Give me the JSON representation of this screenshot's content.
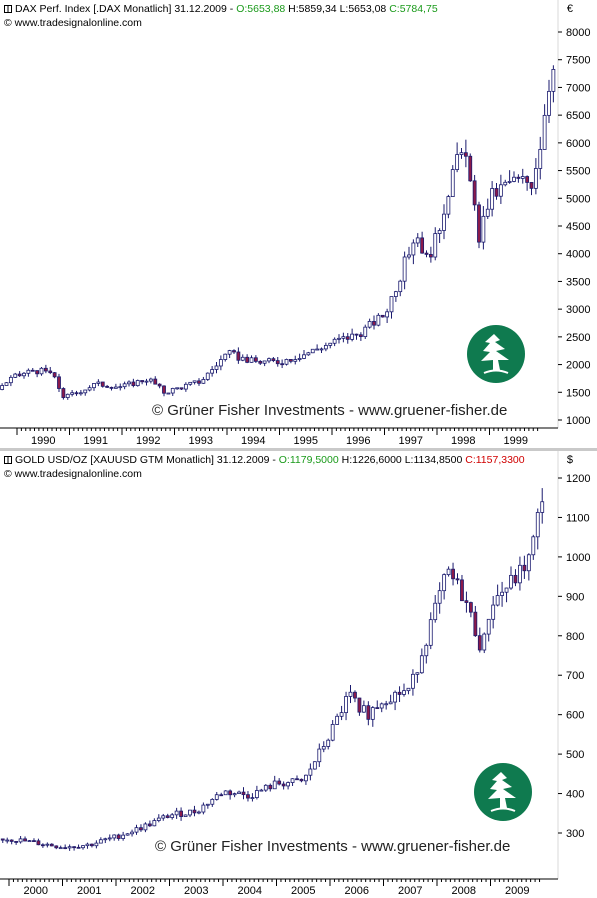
{
  "chart_data": [
    {
      "type": "candlestick",
      "title": "DAX Perf. Index [.DAX  Monatlich] 31.12.2009",
      "header": {
        "name": "DAX Perf. Index [.DAX  Monatlich] 31.12.2009 - ",
        "open": "O:5653,88",
        "high": "H:5859,34",
        "low": "L:5653,08",
        "close": "C:5784,75"
      },
      "source": "© www.tradesignalonline.com",
      "currency": "€",
      "copyright": "© Grüner Fisher Investments - www.gruener-fisher.de",
      "x_ticks": [
        "1990",
        "1991",
        "1992",
        "1993",
        "1994",
        "1995",
        "1996",
        "1997",
        "1998",
        "1999"
      ],
      "y_ticks": [
        "8000",
        "7500",
        "7000",
        "6500",
        "6000",
        "5500",
        "5000",
        "4500",
        "4000",
        "3500",
        "3000",
        "2500",
        "2000",
        "1500",
        "1000"
      ],
      "ylim": [
        1000,
        8000
      ],
      "x_range": [
        1989.55,
        2000.85
      ],
      "key_points": [
        {
          "t": 1989.6,
          "v": 1550
        },
        {
          "t": 1989.9,
          "v": 1750
        },
        {
          "t": 1990.3,
          "v": 1900
        },
        {
          "t": 1990.65,
          "v": 1850
        },
        {
          "t": 1990.9,
          "v": 1400
        },
        {
          "t": 1991.5,
          "v": 1650
        },
        {
          "t": 1992.0,
          "v": 1600
        },
        {
          "t": 1992.5,
          "v": 1750
        },
        {
          "t": 1992.8,
          "v": 1500
        },
        {
          "t": 1993.5,
          "v": 1700
        },
        {
          "t": 1994.0,
          "v": 2200
        },
        {
          "t": 1994.5,
          "v": 2050
        },
        {
          "t": 1995.0,
          "v": 2050
        },
        {
          "t": 1995.5,
          "v": 2200
        },
        {
          "t": 1996.0,
          "v": 2400
        },
        {
          "t": 1996.5,
          "v": 2550
        },
        {
          "t": 1997.0,
          "v": 2900
        },
        {
          "t": 1997.3,
          "v": 3600
        },
        {
          "t": 1997.6,
          "v": 4400
        },
        {
          "t": 1997.8,
          "v": 3900
        },
        {
          "t": 1998.0,
          "v": 4300
        },
        {
          "t": 1998.3,
          "v": 5500
        },
        {
          "t": 1998.55,
          "v": 5900
        },
        {
          "t": 1998.65,
          "v": 5100
        },
        {
          "t": 1998.8,
          "v": 4300
        },
        {
          "t": 1999.0,
          "v": 5000
        },
        {
          "t": 1999.4,
          "v": 5300
        },
        {
          "t": 1999.8,
          "v": 5300
        },
        {
          "t": 1999.95,
          "v": 5900
        },
        {
          "t": 2000.1,
          "v": 6900
        },
        {
          "t": 2000.25,
          "v": 7700
        },
        {
          "t": 2000.4,
          "v": 7450
        },
        {
          "t": 2000.6,
          "v": 7000
        },
        {
          "t": 2000.85,
          "v": 6900
        }
      ]
    },
    {
      "type": "candlestick",
      "title": "GOLD USD/OZ [XAUUSD GTM  Monatlich] 31.12.2009",
      "header": {
        "name": "GOLD USD/OZ [XAUUSD GTM  Monatlich] 31.12.2009 - ",
        "open": "O:1179,5000",
        "high": "H:1226,6000",
        "low": "L:1134,8500",
        "close": "C:1157,3300"
      },
      "source": "© www.tradesignalonline.com",
      "currency": "$",
      "copyright": "© Grüner Fisher Investments - www.gruener-fisher.de",
      "x_ticks": [
        "2000",
        "2001",
        "2002",
        "2003",
        "2004",
        "2005",
        "2006",
        "2007",
        "2008",
        "2009"
      ],
      "y_ticks": [
        "1200",
        "1100",
        "1000",
        "900",
        "800",
        "700",
        "600",
        "500",
        "400",
        "300"
      ],
      "ylim": [
        250,
        1230
      ],
      "x_range": [
        1999.55,
        2010.0
      ],
      "key_points": [
        {
          "t": 1999.6,
          "v": 285
        },
        {
          "t": 2000.0,
          "v": 285
        },
        {
          "t": 2000.5,
          "v": 275
        },
        {
          "t": 2001.0,
          "v": 265
        },
        {
          "t": 2001.5,
          "v": 270
        },
        {
          "t": 2002.0,
          "v": 290
        },
        {
          "t": 2002.5,
          "v": 315
        },
        {
          "t": 2003.0,
          "v": 345
        },
        {
          "t": 2003.5,
          "v": 355
        },
        {
          "t": 2004.0,
          "v": 405
        },
        {
          "t": 2004.5,
          "v": 395
        },
        {
          "t": 2005.0,
          "v": 425
        },
        {
          "t": 2005.5,
          "v": 430
        },
        {
          "t": 2006.0,
          "v": 550
        },
        {
          "t": 2006.35,
          "v": 650
        },
        {
          "t": 2006.7,
          "v": 600
        },
        {
          "t": 2007.0,
          "v": 640
        },
        {
          "t": 2007.5,
          "v": 665
        },
        {
          "t": 2008.0,
          "v": 880
        },
        {
          "t": 2008.2,
          "v": 960
        },
        {
          "t": 2008.5,
          "v": 900
        },
        {
          "t": 2008.85,
          "v": 760
        },
        {
          "t": 2009.0,
          "v": 880
        },
        {
          "t": 2009.5,
          "v": 950
        },
        {
          "t": 2009.75,
          "v": 1000
        },
        {
          "t": 2010.0,
          "v": 1180
        }
      ]
    }
  ]
}
